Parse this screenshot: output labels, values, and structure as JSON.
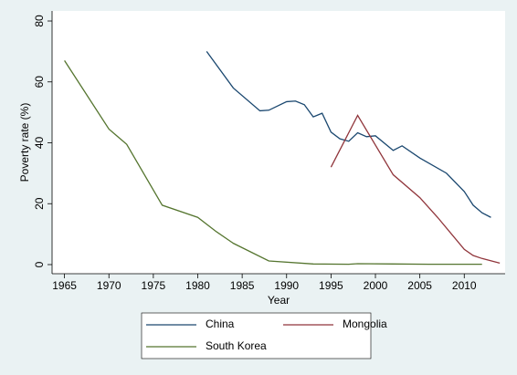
{
  "chart_data": {
    "type": "line",
    "x_label": "Year",
    "y_label": "Poverty rate (%)",
    "xlim": [
      1963.6,
      2014.6
    ],
    "xticks": [
      1965,
      1970,
      1975,
      1980,
      1985,
      1990,
      1995,
      2000,
      2005,
      2010
    ],
    "ylim": [
      -3,
      83.3
    ],
    "yticks": [
      0,
      20,
      40,
      60,
      80
    ],
    "series": [
      {
        "name": "China",
        "color": "#1a476f",
        "x": [
          1981,
          1984,
          1987,
          1988,
          1990,
          1991,
          1992,
          1993,
          1994,
          1995,
          1996,
          1997,
          1998,
          1999,
          2000,
          2002,
          2003,
          2005,
          2008,
          2010,
          2011,
          2012,
          2013
        ],
        "values": [
          70,
          58,
          50.5,
          50.7,
          53.5,
          53.7,
          52.5,
          48.5,
          49.7,
          43.5,
          41.3,
          40.5,
          43.3,
          42,
          42.3,
          37.5,
          39,
          35,
          30,
          24,
          19.5,
          17,
          15.5
        ]
      },
      {
        "name": "Mongolia",
        "color": "#90353b",
        "x": [
          1995,
          1998,
          2002,
          2005,
          2007,
          2010,
          2011,
          2012,
          2014
        ],
        "values": [
          32,
          49,
          29.5,
          22,
          15.5,
          5,
          3,
          2,
          0.5
        ]
      },
      {
        "name": "South Korea",
        "color": "#55752f",
        "x": [
          1965,
          1970,
          1972,
          1976,
          1980,
          1982,
          1984,
          1988,
          1993,
          1997,
          1998,
          2002,
          2006,
          2008,
          2012
        ],
        "values": [
          67,
          44.5,
          39.5,
          19.5,
          15.5,
          11,
          7,
          1.2,
          0.2,
          0.1,
          0.3,
          0.2,
          0.1,
          0.1,
          0.1
        ]
      }
    ]
  }
}
